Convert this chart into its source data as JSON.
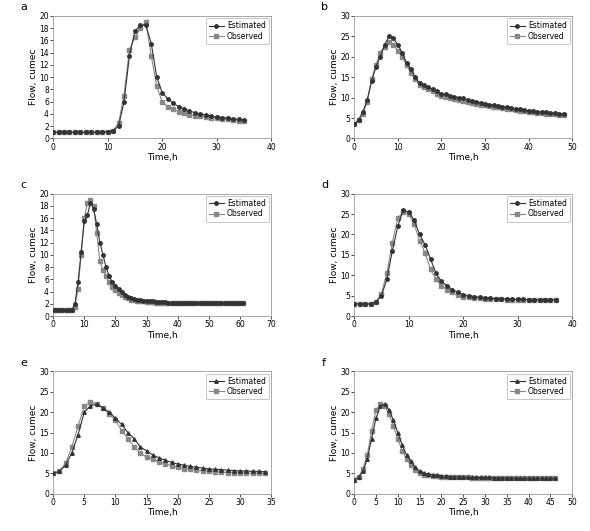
{
  "panels": [
    {
      "label": "a",
      "xlim": [
        0,
        40
      ],
      "ylim": [
        0,
        20
      ],
      "xticks": [
        0,
        10,
        20,
        30,
        40
      ],
      "yticks": [
        0,
        2,
        4,
        6,
        8,
        10,
        12,
        14,
        16,
        18,
        20
      ],
      "estimated_t": [
        0,
        1,
        2,
        3,
        4,
        5,
        6,
        7,
        8,
        9,
        10,
        11,
        12,
        13,
        14,
        15,
        16,
        17,
        18,
        19,
        20,
        21,
        22,
        23,
        24,
        25,
        26,
        27,
        28,
        29,
        30,
        31,
        32,
        33,
        34,
        35
      ],
      "estimated_q": [
        1.0,
        1.0,
        1.0,
        1.0,
        1.0,
        1.0,
        1.0,
        1.0,
        1.0,
        1.0,
        1.1,
        1.3,
        2.0,
        6.0,
        13.5,
        17.5,
        18.5,
        18.5,
        15.5,
        10.0,
        7.5,
        6.5,
        5.8,
        5.2,
        4.8,
        4.5,
        4.2,
        4.0,
        3.8,
        3.6,
        3.5,
        3.4,
        3.3,
        3.2,
        3.1,
        3.0
      ],
      "observed_t": [
        0,
        1,
        2,
        3,
        4,
        5,
        6,
        7,
        8,
        9,
        10,
        11,
        12,
        13,
        14,
        15,
        16,
        17,
        18,
        19,
        20,
        21,
        22,
        23,
        24,
        25,
        26,
        27,
        28,
        29,
        30,
        31,
        32,
        33,
        34,
        35
      ],
      "observed_q": [
        1.0,
        1.0,
        1.0,
        1.0,
        1.0,
        1.0,
        1.0,
        1.0,
        1.0,
        1.0,
        1.1,
        1.3,
        2.5,
        7.0,
        14.5,
        16.5,
        18.0,
        19.0,
        13.5,
        8.5,
        6.0,
        5.2,
        4.8,
        4.4,
        4.1,
        3.9,
        3.7,
        3.6,
        3.5,
        3.4,
        3.3,
        3.2,
        3.1,
        3.0,
        2.9,
        2.8
      ],
      "marker_est": "o",
      "marker_obs": "s"
    },
    {
      "label": "b",
      "xlim": [
        0,
        50
      ],
      "ylim": [
        0,
        30
      ],
      "xticks": [
        0,
        10,
        20,
        30,
        40,
        50
      ],
      "yticks": [
        0,
        5,
        10,
        15,
        20,
        25,
        30
      ],
      "estimated_t": [
        0,
        1,
        2,
        3,
        4,
        5,
        6,
        7,
        8,
        9,
        10,
        11,
        12,
        13,
        14,
        15,
        16,
        17,
        18,
        19,
        20,
        21,
        22,
        23,
        24,
        25,
        26,
        27,
        28,
        29,
        30,
        31,
        32,
        33,
        34,
        35,
        36,
        37,
        38,
        39,
        40,
        41,
        42,
        43,
        44,
        45,
        46,
        47,
        48
      ],
      "estimated_q": [
        3.5,
        4.5,
        6.5,
        9.5,
        14.0,
        17.5,
        20.0,
        23.0,
        25.0,
        24.5,
        23.0,
        21.0,
        18.5,
        17.0,
        15.0,
        13.5,
        13.0,
        12.5,
        12.0,
        11.5,
        11.0,
        10.8,
        10.5,
        10.2,
        10.0,
        9.8,
        9.5,
        9.2,
        9.0,
        8.8,
        8.5,
        8.3,
        8.1,
        8.0,
        7.8,
        7.6,
        7.4,
        7.2,
        7.1,
        7.0,
        6.8,
        6.7,
        6.6,
        6.5,
        6.4,
        6.3,
        6.2,
        6.1,
        6.0
      ],
      "observed_t": [
        0,
        1,
        2,
        3,
        4,
        5,
        6,
        7,
        8,
        9,
        10,
        11,
        12,
        13,
        14,
        15,
        16,
        17,
        18,
        19,
        20,
        21,
        22,
        23,
        24,
        25,
        26,
        27,
        28,
        29,
        30,
        31,
        32,
        33,
        34,
        35,
        36,
        37,
        38,
        39,
        40,
        41,
        42,
        43,
        44,
        45,
        46,
        47,
        48
      ],
      "observed_q": [
        3.5,
        4.5,
        6.0,
        9.0,
        14.5,
        18.0,
        21.0,
        22.5,
        23.5,
        23.0,
        21.5,
        20.0,
        18.0,
        16.0,
        14.5,
        13.0,
        12.5,
        12.0,
        11.5,
        11.0,
        10.5,
        10.2,
        10.0,
        9.7,
        9.5,
        9.2,
        9.0,
        8.8,
        8.5,
        8.3,
        8.1,
        8.0,
        7.8,
        7.6,
        7.4,
        7.2,
        7.1,
        7.0,
        6.8,
        6.7,
        6.5,
        6.4,
        6.3,
        6.2,
        6.1,
        6.0,
        5.9,
        5.8,
        5.7
      ],
      "marker_est": "o",
      "marker_obs": "s"
    },
    {
      "label": "c",
      "xlim": [
        0,
        70
      ],
      "ylim": [
        0,
        20
      ],
      "xticks": [
        0,
        10,
        20,
        30,
        40,
        50,
        60,
        70
      ],
      "yticks": [
        0,
        2,
        4,
        6,
        8,
        10,
        12,
        14,
        16,
        18,
        20
      ],
      "estimated_t": [
        0,
        1,
        2,
        3,
        4,
        5,
        6,
        7,
        8,
        9,
        10,
        11,
        12,
        13,
        14,
        15,
        16,
        17,
        18,
        19,
        20,
        21,
        22,
        23,
        24,
        25,
        26,
        27,
        28,
        29,
        30,
        31,
        32,
        33,
        34,
        35,
        36,
        37,
        38,
        39,
        40,
        41,
        42,
        43,
        44,
        45,
        46,
        47,
        48,
        49,
        50,
        51,
        52,
        53,
        54,
        55,
        56,
        57,
        58,
        59,
        60,
        61
      ],
      "estimated_q": [
        1.0,
        1.0,
        1.0,
        1.0,
        1.0,
        1.0,
        1.0,
        2.0,
        5.5,
        10.5,
        15.5,
        16.5,
        18.5,
        17.5,
        15.0,
        12.0,
        10.0,
        8.0,
        6.5,
        5.5,
        5.0,
        4.5,
        4.0,
        3.5,
        3.2,
        3.0,
        2.8,
        2.7,
        2.6,
        2.5,
        2.5,
        2.4,
        2.4,
        2.3,
        2.3,
        2.3,
        2.3,
        2.2,
        2.2,
        2.2,
        2.2,
        2.2,
        2.2,
        2.2,
        2.2,
        2.2,
        2.2,
        2.2,
        2.2,
        2.2,
        2.2,
        2.2,
        2.2,
        2.2,
        2.2,
        2.2,
        2.2,
        2.2,
        2.2,
        2.2,
        2.2,
        2.2
      ],
      "observed_t": [
        0,
        1,
        2,
        3,
        4,
        5,
        6,
        7,
        8,
        9,
        10,
        11,
        12,
        13,
        14,
        15,
        16,
        17,
        18,
        19,
        20,
        21,
        22,
        23,
        24,
        25,
        26,
        27,
        28,
        29,
        30,
        31,
        32,
        33,
        34,
        35,
        36,
        37,
        38,
        39,
        40,
        41,
        42,
        43,
        44,
        45,
        46,
        47,
        48,
        49,
        50,
        51,
        52,
        53,
        54,
        55,
        56,
        57,
        58,
        59,
        60,
        61
      ],
      "observed_q": [
        1.0,
        1.0,
        1.0,
        1.0,
        1.0,
        1.0,
        1.0,
        1.5,
        4.5,
        10.0,
        16.0,
        18.5,
        19.0,
        18.0,
        13.5,
        9.0,
        7.5,
        6.5,
        5.5,
        4.8,
        4.2,
        3.8,
        3.4,
        3.1,
        2.9,
        2.7,
        2.6,
        2.5,
        2.4,
        2.4,
        2.3,
        2.3,
        2.3,
        2.2,
        2.2,
        2.2,
        2.2,
        2.2,
        2.2,
        2.2,
        2.2,
        2.2,
        2.2,
        2.2,
        2.2,
        2.2,
        2.2,
        2.2,
        2.2,
        2.2,
        2.2,
        2.2,
        2.2,
        2.2,
        2.2,
        2.2,
        2.2,
        2.2,
        2.2,
        2.2,
        2.2,
        2.2
      ],
      "marker_est": "o",
      "marker_obs": "s"
    },
    {
      "label": "d",
      "xlim": [
        0,
        40
      ],
      "ylim": [
        0,
        30
      ],
      "xticks": [
        0,
        10,
        20,
        30,
        40
      ],
      "yticks": [
        0,
        5,
        10,
        15,
        20,
        25,
        30
      ],
      "estimated_t": [
        0,
        1,
        2,
        3,
        4,
        5,
        6,
        7,
        8,
        9,
        10,
        11,
        12,
        13,
        14,
        15,
        16,
        17,
        18,
        19,
        20,
        21,
        22,
        23,
        24,
        25,
        26,
        27,
        28,
        29,
        30,
        31,
        32,
        33,
        34,
        35,
        36,
        37
      ],
      "estimated_q": [
        3.0,
        3.0,
        3.0,
        3.0,
        3.5,
        5.0,
        9.0,
        16.0,
        22.0,
        26.0,
        25.5,
        23.5,
        20.0,
        17.5,
        14.0,
        10.5,
        8.5,
        7.5,
        6.5,
        5.8,
        5.3,
        5.0,
        4.8,
        4.6,
        4.5,
        4.4,
        4.3,
        4.2,
        4.2,
        4.1,
        4.1,
        4.1,
        4.0,
        4.0,
        4.0,
        4.0,
        4.0,
        4.0
      ],
      "observed_t": [
        0,
        1,
        2,
        3,
        4,
        5,
        6,
        7,
        8,
        9,
        10,
        11,
        12,
        13,
        14,
        15,
        16,
        17,
        18,
        19,
        20,
        21,
        22,
        23,
        24,
        25,
        26,
        27,
        28,
        29,
        30,
        31,
        32,
        33,
        34,
        35,
        36,
        37
      ],
      "observed_q": [
        3.0,
        3.0,
        3.0,
        3.0,
        3.5,
        5.5,
        10.5,
        18.0,
        24.0,
        25.5,
        25.0,
        22.5,
        18.5,
        15.5,
        11.5,
        9.0,
        7.5,
        6.5,
        5.8,
        5.2,
        4.8,
        4.6,
        4.5,
        4.4,
        4.3,
        4.2,
        4.1,
        4.1,
        4.0,
        4.0,
        4.0,
        4.0,
        4.0,
        4.0,
        4.0,
        4.0,
        4.0,
        4.0
      ],
      "marker_est": "o",
      "marker_obs": "s"
    },
    {
      "label": "e",
      "xlim": [
        0,
        35
      ],
      "ylim": [
        0,
        30
      ],
      "xticks": [
        0,
        5,
        10,
        15,
        20,
        25,
        30,
        35
      ],
      "yticks": [
        0,
        5,
        10,
        15,
        20,
        25,
        30
      ],
      "estimated_t": [
        0,
        1,
        2,
        3,
        4,
        5,
        6,
        7,
        8,
        9,
        10,
        11,
        12,
        13,
        14,
        15,
        16,
        17,
        18,
        19,
        20,
        21,
        22,
        23,
        24,
        25,
        26,
        27,
        28,
        29,
        30,
        31,
        32,
        33,
        34
      ],
      "estimated_q": [
        5.0,
        5.5,
        7.0,
        10.0,
        14.5,
        20.0,
        21.5,
        22.0,
        21.0,
        20.0,
        18.5,
        17.0,
        15.0,
        13.5,
        11.5,
        10.5,
        9.5,
        8.8,
        8.2,
        7.7,
        7.3,
        7.0,
        6.7,
        6.5,
        6.3,
        6.1,
        6.0,
        5.9,
        5.8,
        5.7,
        5.6,
        5.6,
        5.5,
        5.5,
        5.4
      ],
      "observed_t": [
        0,
        1,
        2,
        3,
        4,
        5,
        6,
        7,
        8,
        9,
        10,
        11,
        12,
        13,
        14,
        15,
        16,
        17,
        18,
        19,
        20,
        21,
        22,
        23,
        24,
        25,
        26,
        27,
        28,
        29,
        30,
        31,
        32,
        33,
        34
      ],
      "observed_q": [
        5.0,
        5.5,
        7.5,
        11.5,
        16.5,
        21.5,
        22.5,
        22.0,
        21.0,
        19.5,
        18.0,
        15.5,
        13.5,
        11.5,
        10.0,
        9.0,
        8.5,
        7.8,
        7.3,
        6.9,
        6.5,
        6.2,
        6.0,
        5.8,
        5.6,
        5.5,
        5.4,
        5.3,
        5.2,
        5.2,
        5.1,
        5.1,
        5.0,
        5.0,
        5.0
      ],
      "marker_est": "^",
      "marker_obs": "s"
    },
    {
      "label": "f",
      "xlim": [
        0,
        50
      ],
      "ylim": [
        0,
        30
      ],
      "xticks": [
        0,
        5,
        10,
        15,
        20,
        25,
        30,
        35,
        40,
        45,
        50
      ],
      "yticks": [
        0,
        5,
        10,
        15,
        20,
        25,
        30
      ],
      "estimated_t": [
        0,
        1,
        2,
        3,
        4,
        5,
        6,
        7,
        8,
        9,
        10,
        11,
        12,
        13,
        14,
        15,
        16,
        17,
        18,
        19,
        20,
        21,
        22,
        23,
        24,
        25,
        26,
        27,
        28,
        29,
        30,
        31,
        32,
        33,
        34,
        35,
        36,
        37,
        38,
        39,
        40,
        41,
        42,
        43,
        44,
        45,
        46
      ],
      "estimated_q": [
        3.5,
        4.0,
        5.5,
        8.5,
        13.5,
        18.5,
        21.5,
        22.0,
        20.5,
        18.0,
        15.0,
        12.0,
        9.5,
        8.0,
        6.5,
        5.5,
        5.0,
        4.8,
        4.6,
        4.5,
        4.4,
        4.3,
        4.2,
        4.2,
        4.1,
        4.1,
        4.0,
        4.0,
        4.0,
        4.0,
        4.0,
        4.0,
        3.9,
        3.9,
        3.9,
        3.9,
        3.9,
        3.9,
        3.8,
        3.8,
        3.8,
        3.8,
        3.8,
        3.8,
        3.8,
        3.8,
        3.8
      ],
      "observed_t": [
        0,
        1,
        2,
        3,
        4,
        5,
        6,
        7,
        8,
        9,
        10,
        11,
        12,
        13,
        14,
        15,
        16,
        17,
        18,
        19,
        20,
        21,
        22,
        23,
        24,
        25,
        26,
        27,
        28,
        29,
        30,
        31,
        32,
        33,
        34,
        35,
        36,
        37,
        38,
        39,
        40,
        41,
        42,
        43,
        44,
        45,
        46
      ],
      "observed_q": [
        3.5,
        4.0,
        6.0,
        9.5,
        15.5,
        20.5,
        22.0,
        21.5,
        19.5,
        16.5,
        13.5,
        10.5,
        8.5,
        7.0,
        5.8,
        5.0,
        4.7,
        4.5,
        4.4,
        4.3,
        4.2,
        4.1,
        4.1,
        4.0,
        4.0,
        4.0,
        4.0,
        3.9,
        3.9,
        3.9,
        3.9,
        3.9,
        3.9,
        3.9,
        3.9,
        3.9,
        3.8,
        3.8,
        3.8,
        3.8,
        3.8,
        3.8,
        3.8,
        3.8,
        3.8,
        3.8,
        3.8
      ],
      "marker_est": "^",
      "marker_obs": "s"
    }
  ],
  "line_color_estimated": "#333333",
  "line_color_observed": "#888888",
  "markersize": 2.5,
  "linewidth": 0.8,
  "xlabel": "Time,h",
  "ylabel": "Flow, cumec",
  "legend_estimated": "Estimated",
  "legend_observed": "Observed",
  "bg_color": "#ffffff"
}
